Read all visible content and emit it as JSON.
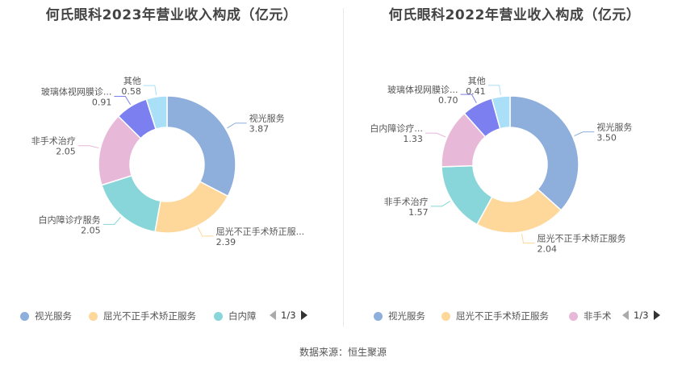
{
  "source": "数据来源：恒生聚源",
  "colors": [
    "#8eaedc",
    "#fdd89a",
    "#88d6d9",
    "#e8b8d8",
    "#7b7ff0",
    "#a9e0f8"
  ],
  "chart_data": [
    {
      "type": "pie",
      "title": "何氏眼科2023年营业收入构成（亿元）",
      "labels": [
        "视光服务",
        "屈光不正手术矫正服务",
        "白内障诊疗服务",
        "非手术治疗",
        "玻璃体视网膜诊疗服务",
        "其他"
      ],
      "display_labels": [
        "视光服务",
        "屈光不正手术矫正服...",
        "白内障诊疗服务",
        "非手术治疗",
        "玻璃体视网膜诊...",
        "其他"
      ],
      "display_values": [
        "3.87",
        "2.39",
        "2.05",
        "2.05",
        "0.91",
        "0.58"
      ],
      "values": [
        3.87,
        2.39,
        2.05,
        2.05,
        0.91,
        0.58
      ],
      "legend": {
        "items": [
          "视光服务",
          "屈光不正手术矫正服务",
          "白内障"
        ],
        "page": "1/3"
      }
    },
    {
      "type": "pie",
      "title": "何氏眼科2022年营业收入构成（亿元）",
      "labels": [
        "视光服务",
        "屈光不正手术矫正服务",
        "非手术治疗",
        "白内障诊疗服务",
        "玻璃体视网膜诊疗服务",
        "其他"
      ],
      "display_labels": [
        "视光服务",
        "屈光不正手术矫正服务",
        "非手术治疗",
        "白内障诊疗...",
        "玻璃体视网膜诊...",
        "其他"
      ],
      "display_values": [
        "3.50",
        "2.04",
        "1.57",
        "1.33",
        "0.70",
        "0.41"
      ],
      "values": [
        3.5,
        2.04,
        1.57,
        1.33,
        0.7,
        0.41
      ],
      "legend": {
        "items": [
          "视光服务",
          "屈光不正手术矫正服务",
          "非手术"
        ],
        "page": "1/3"
      }
    }
  ]
}
